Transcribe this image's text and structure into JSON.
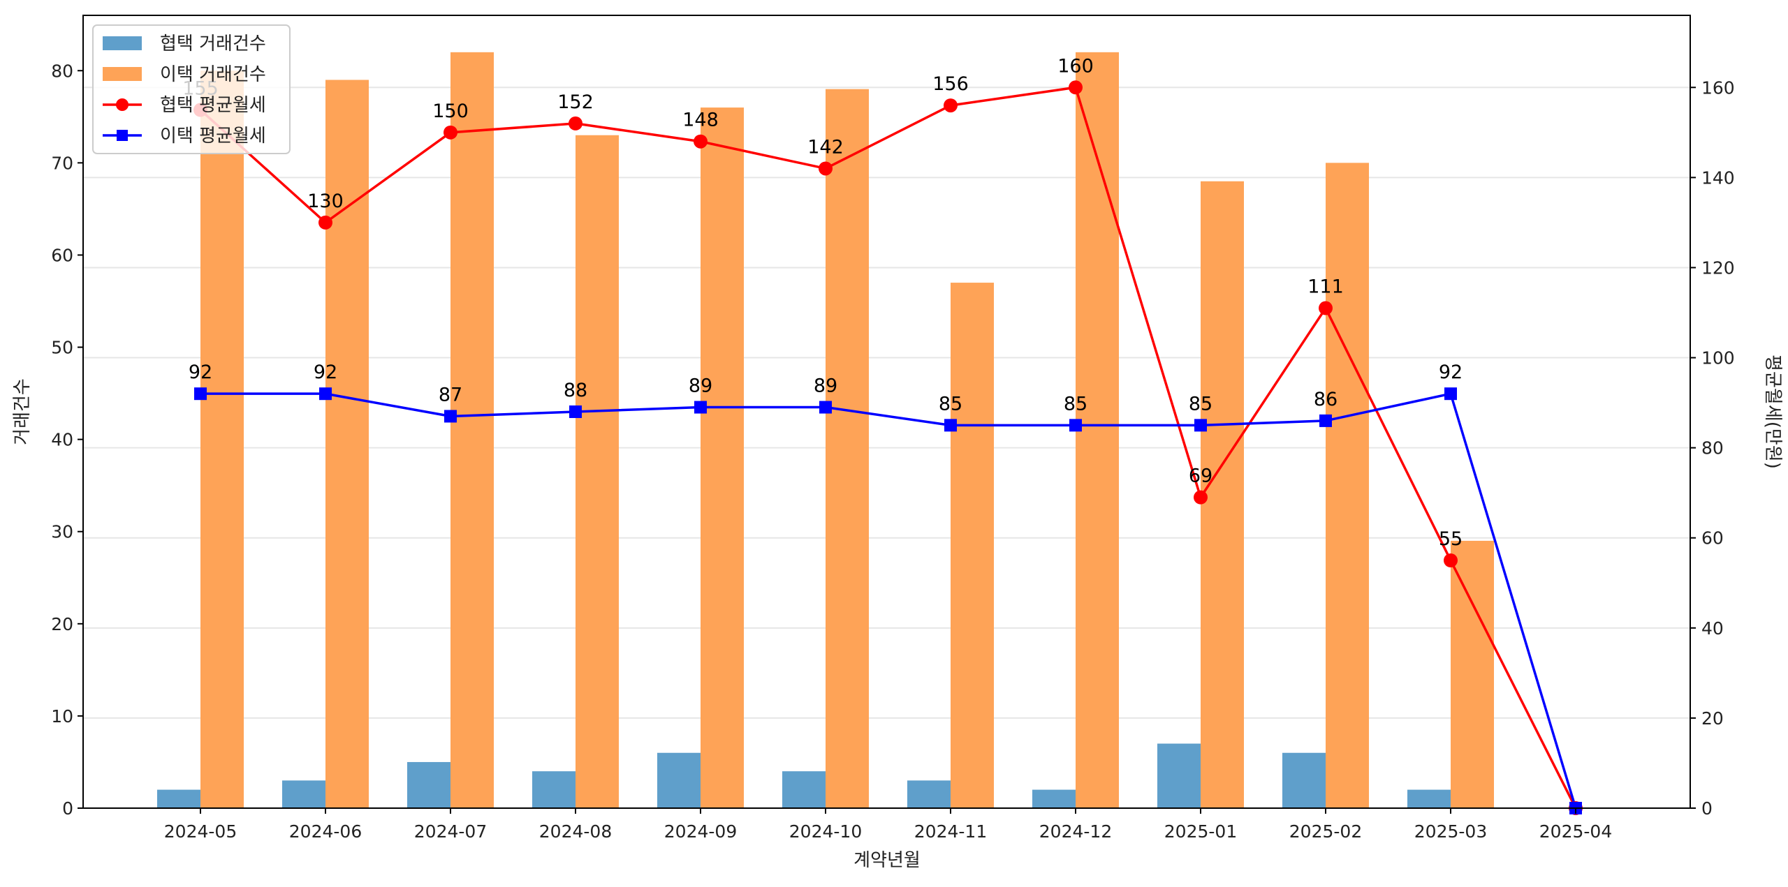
{
  "chart_data": {
    "type": "bar",
    "title": "",
    "xlabel": "계약년월",
    "ylabel": "거래건수",
    "y2label": "평균월세(만원)",
    "categories": [
      "2024-05",
      "2024-06",
      "2024-07",
      "2024-08",
      "2024-09",
      "2024-10",
      "2024-11",
      "2024-12",
      "2025-01",
      "2025-02",
      "2025-03",
      "2025-04"
    ],
    "ylim": [
      0,
      86
    ],
    "yticks": [
      0,
      10,
      20,
      30,
      40,
      50,
      60,
      70,
      80
    ],
    "y2lim": [
      0,
      176
    ],
    "y2ticks": [
      0,
      20,
      40,
      60,
      80,
      100,
      120,
      140,
      160
    ],
    "grid": "horizontal",
    "legend_position": "top-left",
    "bar_series": [
      {
        "name": "협택 거래건수",
        "color": "#5f9fcb",
        "values": [
          2,
          3,
          5,
          4,
          6,
          4,
          3,
          2,
          7,
          6,
          2,
          0
        ]
      },
      {
        "name": "이택 거래건수",
        "color": "#fea357",
        "values": [
          80,
          79,
          82,
          73,
          76,
          78,
          57,
          82,
          68,
          70,
          29,
          0
        ]
      }
    ],
    "line_series": [
      {
        "name": "협택 평균월세",
        "color": "#ff0000",
        "marker": "circle",
        "values": [
          155,
          130,
          150,
          152,
          148,
          142,
          156,
          160,
          69,
          111,
          55,
          0
        ],
        "labels": [
          "155",
          "130",
          "150",
          "152",
          "148",
          "142",
          "156",
          "160",
          "69",
          "111",
          "55",
          ""
        ]
      },
      {
        "name": "이택 평균월세",
        "color": "#0000ff",
        "marker": "square",
        "values": [
          92,
          92,
          87,
          88,
          89,
          89,
          85,
          85,
          85,
          86,
          92,
          0
        ],
        "labels": [
          "92",
          "92",
          "87",
          "88",
          "89",
          "89",
          "85",
          "85",
          "85",
          "86",
          "92",
          ""
        ]
      }
    ]
  }
}
